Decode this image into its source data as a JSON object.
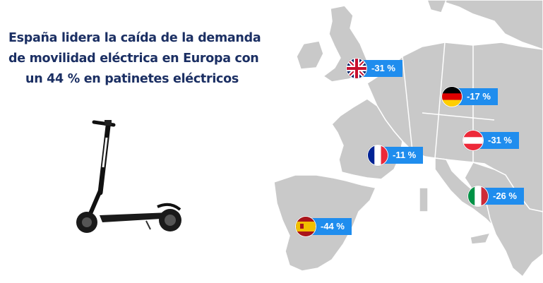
{
  "headline": {
    "line1": "España lidera la caída de la demanda",
    "line2": "de movilidad eléctrica en Europa con",
    "line3": "un  44 % en patinetes eléctricos"
  },
  "colors": {
    "title": "#1b2f63",
    "badge": "#1f8dee",
    "land": "#c9c9c9",
    "border": "#ffffff"
  },
  "badges": [
    {
      "country": "United Kingdom",
      "flag_icon": "uk-flag-icon",
      "value": "-31 %"
    },
    {
      "country": "Germany",
      "flag_icon": "germany-flag-icon",
      "value": "-17 %"
    },
    {
      "country": "Austria",
      "flag_icon": "austria-flag-icon",
      "value": "-31 %"
    },
    {
      "country": "France",
      "flag_icon": "france-flag-icon",
      "value": "-11 %"
    },
    {
      "country": "Italy",
      "flag_icon": "italy-flag-icon",
      "value": "-26 %"
    },
    {
      "country": "Spain",
      "flag_icon": "spain-flag-icon",
      "value": "-44 %"
    }
  ]
}
